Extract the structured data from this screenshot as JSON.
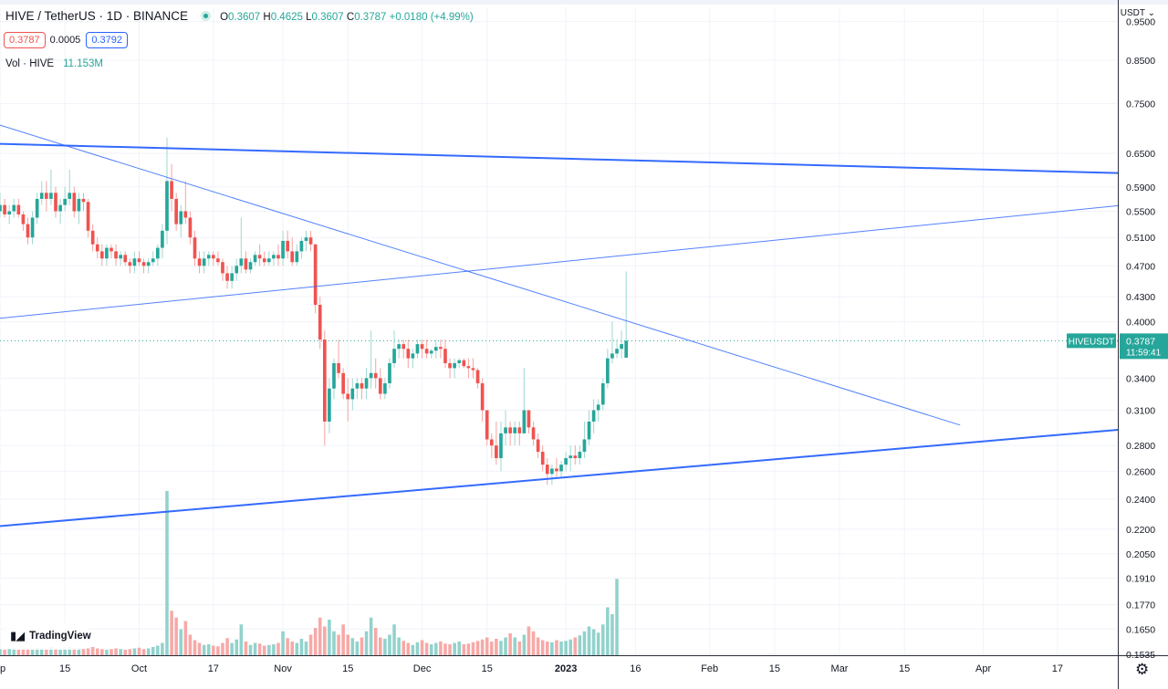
{
  "header": {
    "symbol": "HIVE / TetherUS · 1D · BINANCE",
    "ohlc": {
      "o_label": "O",
      "o": "0.3607",
      "h_label": "H",
      "h": "0.4625",
      "l_label": "L",
      "l": "0.3607",
      "c_label": "C",
      "c": "0.3787",
      "change": "+0.0180 (+4.99%)"
    },
    "sell_price": "0.3787",
    "spread": "0.0005",
    "buy_price": "0.3792",
    "volume_label": "Vol · HIVE",
    "volume_value": "11.153M"
  },
  "price_axis": {
    "unit": "USDT",
    "unit_chevron": "⌄",
    "last_label": "HIVEUSDT",
    "last_price": "0.3787",
    "countdown": "11:59:41"
  },
  "branding": {
    "logo_mark": "▮◢",
    "logo_text": "TradingView"
  },
  "settings_icon": "⚙",
  "colors": {
    "up": "#26a69a",
    "down": "#ef5350",
    "up_volume": "#92d2cc",
    "down_volume": "#f7a9a7",
    "trendline": "#2962ff",
    "grid": "#f0f3fa"
  },
  "chart_data": {
    "type": "candlestick",
    "title": "HIVE / TetherUS · 1D · BINANCE",
    "y_scale": "log",
    "ylim": [
      0.153,
      0.99
    ],
    "xlim": [
      "2022-09-01",
      "2023-04-30"
    ],
    "y_ticks": [
      "0.9500",
      "0.8500",
      "0.7500",
      "0.6500",
      "0.5900",
      "0.5500",
      "0.5100",
      "0.4700",
      "0.4300",
      "0.4000",
      "0.3400",
      "0.3100",
      "0.2800",
      "0.2600",
      "0.2400",
      "0.2200",
      "0.2050",
      "0.1910",
      "0.1770",
      "0.1650",
      "0.1535"
    ],
    "x_ticks": [
      {
        "date": "2022-09-01",
        "label": "ep"
      },
      {
        "date": "2022-09-15",
        "label": "15"
      },
      {
        "date": "2022-10-01",
        "label": "Oct"
      },
      {
        "date": "2022-10-17",
        "label": "17"
      },
      {
        "date": "2022-11-01",
        "label": "Nov"
      },
      {
        "date": "2022-11-15",
        "label": "15"
      },
      {
        "date": "2022-12-01",
        "label": "Dec"
      },
      {
        "date": "2022-12-15",
        "label": "15"
      },
      {
        "date": "2023-01-01",
        "label": "2023"
      },
      {
        "date": "2023-01-16",
        "label": "16"
      },
      {
        "date": "2023-02-01",
        "label": "Feb"
      },
      {
        "date": "2023-02-15",
        "label": "15"
      },
      {
        "date": "2023-03-01",
        "label": "Mar"
      },
      {
        "date": "2023-03-15",
        "label": "15"
      },
      {
        "date": "2023-04-01",
        "label": "Apr"
      },
      {
        "date": "2023-04-17",
        "label": "17"
      }
    ],
    "last_price": 0.3787,
    "candles_start": "2022-09-01",
    "candles": [
      [
        0.55,
        0.58,
        0.54,
        0.56
      ],
      [
        0.56,
        0.57,
        0.54,
        0.545
      ],
      [
        0.545,
        0.56,
        0.53,
        0.55
      ],
      [
        0.55,
        0.57,
        0.54,
        0.56
      ],
      [
        0.56,
        0.57,
        0.54,
        0.545
      ],
      [
        0.545,
        0.55,
        0.52,
        0.53
      ],
      [
        0.53,
        0.54,
        0.5,
        0.51
      ],
      [
        0.51,
        0.55,
        0.5,
        0.54
      ],
      [
        0.54,
        0.58,
        0.53,
        0.57
      ],
      [
        0.57,
        0.6,
        0.56,
        0.58
      ],
      [
        0.58,
        0.6,
        0.55,
        0.57
      ],
      [
        0.57,
        0.62,
        0.56,
        0.58
      ],
      [
        0.58,
        0.59,
        0.54,
        0.55
      ],
      [
        0.55,
        0.57,
        0.53,
        0.56
      ],
      [
        0.56,
        0.59,
        0.55,
        0.57
      ],
      [
        0.57,
        0.62,
        0.56,
        0.58
      ],
      [
        0.58,
        0.59,
        0.54,
        0.55
      ],
      [
        0.55,
        0.58,
        0.53,
        0.57
      ],
      [
        0.57,
        0.58,
        0.55,
        0.565
      ],
      [
        0.565,
        0.57,
        0.51,
        0.52
      ],
      [
        0.52,
        0.53,
        0.49,
        0.5
      ],
      [
        0.5,
        0.51,
        0.48,
        0.49
      ],
      [
        0.49,
        0.5,
        0.47,
        0.48
      ],
      [
        0.48,
        0.5,
        0.47,
        0.495
      ],
      [
        0.495,
        0.5,
        0.48,
        0.49
      ],
      [
        0.49,
        0.5,
        0.47,
        0.48
      ],
      [
        0.48,
        0.49,
        0.47,
        0.485
      ],
      [
        0.485,
        0.49,
        0.47,
        0.475
      ],
      [
        0.475,
        0.48,
        0.46,
        0.47
      ],
      [
        0.47,
        0.49,
        0.46,
        0.48
      ],
      [
        0.48,
        0.49,
        0.47,
        0.475
      ],
      [
        0.475,
        0.48,
        0.46,
        0.47
      ],
      [
        0.47,
        0.48,
        0.46,
        0.475
      ],
      [
        0.475,
        0.49,
        0.47,
        0.48
      ],
      [
        0.48,
        0.5,
        0.47,
        0.495
      ],
      [
        0.495,
        0.53,
        0.48,
        0.52
      ],
      [
        0.52,
        0.68,
        0.5,
        0.6
      ],
      [
        0.6,
        0.63,
        0.55,
        0.57
      ],
      [
        0.57,
        0.58,
        0.52,
        0.53
      ],
      [
        0.53,
        0.56,
        0.51,
        0.55
      ],
      [
        0.55,
        0.6,
        0.53,
        0.54
      ],
      [
        0.54,
        0.55,
        0.5,
        0.51
      ],
      [
        0.51,
        0.52,
        0.47,
        0.48
      ],
      [
        0.48,
        0.49,
        0.46,
        0.47
      ],
      [
        0.47,
        0.49,
        0.46,
        0.48
      ],
      [
        0.48,
        0.49,
        0.47,
        0.485
      ],
      [
        0.485,
        0.49,
        0.47,
        0.48
      ],
      [
        0.48,
        0.49,
        0.47,
        0.475
      ],
      [
        0.475,
        0.48,
        0.45,
        0.46
      ],
      [
        0.46,
        0.47,
        0.44,
        0.45
      ],
      [
        0.45,
        0.47,
        0.44,
        0.46
      ],
      [
        0.46,
        0.48,
        0.45,
        0.47
      ],
      [
        0.47,
        0.54,
        0.46,
        0.48
      ],
      [
        0.48,
        0.49,
        0.46,
        0.465
      ],
      [
        0.465,
        0.48,
        0.46,
        0.475
      ],
      [
        0.475,
        0.49,
        0.47,
        0.485
      ],
      [
        0.485,
        0.5,
        0.47,
        0.48
      ],
      [
        0.48,
        0.49,
        0.47,
        0.475
      ],
      [
        0.475,
        0.49,
        0.47,
        0.48
      ],
      [
        0.48,
        0.49,
        0.47,
        0.485
      ],
      [
        0.485,
        0.5,
        0.47,
        0.48
      ],
      [
        0.48,
        0.52,
        0.47,
        0.505
      ],
      [
        0.505,
        0.52,
        0.48,
        0.49
      ],
      [
        0.49,
        0.51,
        0.47,
        0.475
      ],
      [
        0.475,
        0.5,
        0.47,
        0.49
      ],
      [
        0.49,
        0.51,
        0.48,
        0.505
      ],
      [
        0.505,
        0.52,
        0.49,
        0.51
      ],
      [
        0.51,
        0.52,
        0.49,
        0.5
      ],
      [
        0.5,
        0.5,
        0.41,
        0.42
      ],
      [
        0.42,
        0.43,
        0.37,
        0.38
      ],
      [
        0.38,
        0.39,
        0.28,
        0.3
      ],
      [
        0.3,
        0.34,
        0.29,
        0.33
      ],
      [
        0.33,
        0.36,
        0.32,
        0.355
      ],
      [
        0.355,
        0.38,
        0.34,
        0.345
      ],
      [
        0.345,
        0.35,
        0.32,
        0.325
      ],
      [
        0.325,
        0.34,
        0.3,
        0.32
      ],
      [
        0.32,
        0.34,
        0.31,
        0.33
      ],
      [
        0.33,
        0.34,
        0.32,
        0.335
      ],
      [
        0.335,
        0.34,
        0.32,
        0.33
      ],
      [
        0.33,
        0.35,
        0.32,
        0.34
      ],
      [
        0.34,
        0.39,
        0.33,
        0.345
      ],
      [
        0.345,
        0.36,
        0.33,
        0.34
      ],
      [
        0.34,
        0.35,
        0.32,
        0.325
      ],
      [
        0.325,
        0.34,
        0.32,
        0.335
      ],
      [
        0.335,
        0.36,
        0.33,
        0.355
      ],
      [
        0.355,
        0.39,
        0.35,
        0.37
      ],
      [
        0.37,
        0.38,
        0.36,
        0.375
      ],
      [
        0.375,
        0.38,
        0.36,
        0.37
      ],
      [
        0.37,
        0.38,
        0.35,
        0.36
      ],
      [
        0.36,
        0.37,
        0.35,
        0.365
      ],
      [
        0.365,
        0.38,
        0.36,
        0.375
      ],
      [
        0.375,
        0.38,
        0.36,
        0.37
      ],
      [
        0.37,
        0.38,
        0.36,
        0.365
      ],
      [
        0.365,
        0.37,
        0.36,
        0.368
      ],
      [
        0.368,
        0.38,
        0.36,
        0.372
      ],
      [
        0.372,
        0.38,
        0.36,
        0.37
      ],
      [
        0.37,
        0.38,
        0.35,
        0.355
      ],
      [
        0.355,
        0.36,
        0.34,
        0.35
      ],
      [
        0.35,
        0.36,
        0.34,
        0.355
      ],
      [
        0.355,
        0.36,
        0.35,
        0.358
      ],
      [
        0.358,
        0.36,
        0.35,
        0.352
      ],
      [
        0.352,
        0.36,
        0.34,
        0.35
      ],
      [
        0.35,
        0.36,
        0.34,
        0.348
      ],
      [
        0.348,
        0.35,
        0.33,
        0.335
      ],
      [
        0.335,
        0.34,
        0.3,
        0.31
      ],
      [
        0.31,
        0.31,
        0.28,
        0.285
      ],
      [
        0.285,
        0.29,
        0.27,
        0.28
      ],
      [
        0.28,
        0.3,
        0.265,
        0.27
      ],
      [
        0.27,
        0.3,
        0.26,
        0.29
      ],
      [
        0.29,
        0.31,
        0.28,
        0.295
      ],
      [
        0.295,
        0.3,
        0.28,
        0.29
      ],
      [
        0.29,
        0.3,
        0.28,
        0.295
      ],
      [
        0.295,
        0.3,
        0.28,
        0.29
      ],
      [
        0.29,
        0.35,
        0.29,
        0.31
      ],
      [
        0.31,
        0.31,
        0.29,
        0.295
      ],
      [
        0.295,
        0.3,
        0.28,
        0.285
      ],
      [
        0.285,
        0.29,
        0.27,
        0.275
      ],
      [
        0.275,
        0.28,
        0.26,
        0.265
      ],
      [
        0.265,
        0.27,
        0.25,
        0.258
      ],
      [
        0.258,
        0.265,
        0.25,
        0.262
      ],
      [
        0.262,
        0.27,
        0.255,
        0.26
      ],
      [
        0.26,
        0.268,
        0.255,
        0.265
      ],
      [
        0.265,
        0.275,
        0.26,
        0.27
      ],
      [
        0.27,
        0.28,
        0.26,
        0.272
      ],
      [
        0.272,
        0.28,
        0.265,
        0.27
      ],
      [
        0.27,
        0.28,
        0.265,
        0.275
      ],
      [
        0.275,
        0.3,
        0.27,
        0.285
      ],
      [
        0.285,
        0.31,
        0.28,
        0.3
      ],
      [
        0.3,
        0.32,
        0.29,
        0.31
      ],
      [
        0.31,
        0.32,
        0.3,
        0.315
      ],
      [
        0.315,
        0.34,
        0.31,
        0.335
      ],
      [
        0.335,
        0.37,
        0.33,
        0.36
      ],
      [
        0.36,
        0.4,
        0.355,
        0.365
      ],
      [
        0.365,
        0.38,
        0.36,
        0.37
      ],
      [
        0.37,
        0.39,
        0.36,
        0.375
      ],
      [
        0.3607,
        0.4625,
        0.3607,
        0.3787
      ]
    ],
    "volume_unit": "M",
    "volume": [
      0.9,
      0.8,
      0.9,
      1.0,
      0.8,
      0.9,
      1.0,
      0.9,
      1.1,
      1.0,
      0.9,
      1.2,
      1.0,
      0.9,
      1.0,
      1.2,
      1.0,
      1.1,
      0.9,
      1.0,
      1.2,
      1.0,
      0.9,
      0.8,
      0.9,
      1.0,
      0.9,
      0.8,
      0.9,
      1.0,
      1.1,
      0.9,
      1.0,
      1.2,
      1.4,
      1.8,
      24.0,
      6.5,
      5.5,
      3.8,
      5.0,
      3.0,
      2.2,
      1.8,
      1.5,
      1.6,
      1.4,
      1.3,
      1.8,
      2.5,
      1.8,
      2.3,
      4.5,
      2.0,
      1.5,
      1.8,
      1.7,
      1.4,
      1.5,
      1.6,
      1.8,
      3.5,
      2.5,
      2.0,
      1.8,
      2.4,
      2.0,
      3.0,
      4.0,
      5.5,
      4.2,
      5.2,
      3.5,
      3.0,
      4.5,
      3.0,
      2.5,
      2.0,
      2.6,
      3.5,
      5.5,
      4.0,
      2.6,
      2.4,
      3.0,
      4.5,
      2.6,
      2.1,
      1.8,
      1.5,
      1.9,
      2.2,
      1.8,
      1.6,
      1.8,
      2.0,
      1.7,
      1.6,
      1.8,
      2.0,
      1.6,
      1.7,
      1.9,
      2.1,
      2.3,
      2.6,
      2.0,
      2.4,
      2.1,
      2.6,
      3.2,
      2.6,
      2.0,
      3.0,
      4.2,
      3.5,
      2.6,
      2.2,
      2.0,
      1.9,
      2.2,
      2.0,
      2.1,
      2.3,
      2.6,
      2.9,
      3.5,
      4.2,
      3.8,
      3.3,
      4.5,
      7.0,
      6.0,
      11.153
    ],
    "trend_lines": [
      {
        "from": [
          "2022-09-01",
          0.668
        ],
        "to": [
          "2023-04-30",
          0.614
        ],
        "weight": "thick"
      },
      {
        "from": [
          "2022-09-01",
          0.404
        ],
        "to": [
          "2023-04-30",
          0.559
        ],
        "weight": "thin"
      },
      {
        "from": [
          "2022-09-01",
          0.222
        ],
        "to": [
          "2023-04-30",
          0.293
        ],
        "weight": "thick"
      },
      {
        "from": [
          "2022-09-01",
          0.705
        ],
        "to": [
          "2023-03-27",
          0.297
        ],
        "weight": "thin"
      }
    ]
  }
}
